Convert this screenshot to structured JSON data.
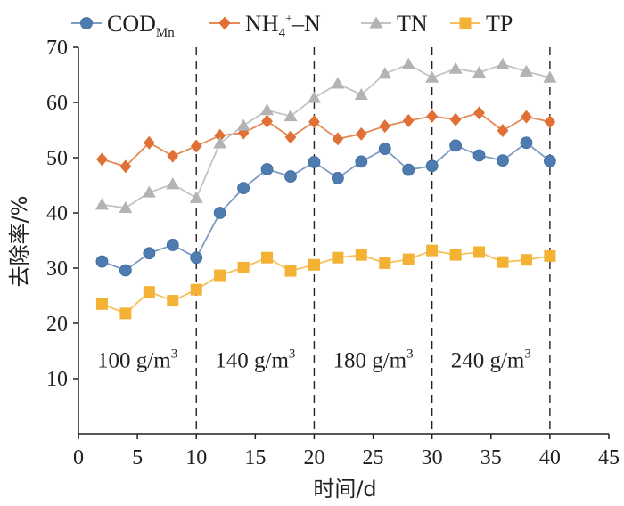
{
  "chart_data": {
    "type": "line",
    "xlabel": "时间/d",
    "ylabel": "去除率/%",
    "xlim": [
      0,
      45
    ],
    "ylim": [
      0,
      70
    ],
    "xticks": [
      0,
      5,
      10,
      15,
      20,
      25,
      30,
      35,
      40,
      45
    ],
    "yticks": [
      10,
      20,
      30,
      40,
      50,
      60,
      70
    ],
    "grid": false,
    "legend_position": "top",
    "x": [
      2,
      4,
      6,
      8,
      10,
      12,
      14,
      16,
      18,
      20,
      22,
      24,
      26,
      28,
      30,
      32,
      34,
      36,
      38,
      40
    ],
    "series": [
      {
        "name": "CODMn",
        "name_main": "COD",
        "name_sub": "Mn",
        "marker": "circle",
        "color": "#4f7cb0",
        "line_color": "#7d9cc4",
        "values": [
          31.2,
          29.6,
          32.7,
          34.2,
          31.9,
          40.0,
          44.5,
          47.9,
          46.6,
          49.2,
          46.3,
          49.3,
          51.6,
          47.8,
          48.5,
          52.2,
          50.4,
          49.5,
          52.7,
          49.4
        ]
      },
      {
        "name": "NH4+-N",
        "name_main": "NH",
        "name_sub": "4",
        "name_sup": "+",
        "name_tail": "–N",
        "marker": "diamond",
        "color": "#e07035",
        "line_color": "#e48a55",
        "values": [
          49.7,
          48.4,
          52.7,
          50.3,
          52.1,
          54.0,
          54.5,
          56.6,
          53.7,
          56.5,
          53.4,
          54.3,
          55.7,
          56.7,
          57.5,
          56.9,
          58.1,
          54.9,
          57.4,
          56.5
        ]
      },
      {
        "name": "TN",
        "marker": "triangle",
        "color": "#b3b3b3",
        "line_color": "#c3c3c3",
        "values": [
          41.5,
          40.9,
          43.7,
          45.2,
          42.7,
          52.6,
          55.8,
          58.6,
          57.5,
          60.8,
          63.4,
          61.4,
          65.2,
          66.9,
          64.5,
          66.1,
          65.4,
          66.9,
          65.6,
          64.5
        ]
      },
      {
        "name": "TP",
        "marker": "square",
        "color": "#f3b234",
        "line_color": "#f5c25a",
        "values": [
          23.5,
          21.8,
          25.7,
          24.1,
          26.1,
          28.7,
          30.1,
          31.9,
          29.5,
          30.6,
          31.9,
          32.4,
          30.9,
          31.6,
          33.2,
          32.4,
          32.9,
          31.1,
          31.5,
          32.2
        ]
      }
    ],
    "dividers": [
      10,
      20,
      30,
      40
    ],
    "phases": [
      {
        "x_center": 5,
        "label": "100 g/m",
        "sup": "3"
      },
      {
        "x_center": 15,
        "label": "140 g/m",
        "sup": "3"
      },
      {
        "x_center": 25,
        "label": "180 g/m",
        "sup": "3"
      },
      {
        "x_center": 35,
        "label": "240 g/m",
        "sup": "3"
      }
    ],
    "phase_label_y": 12
  }
}
